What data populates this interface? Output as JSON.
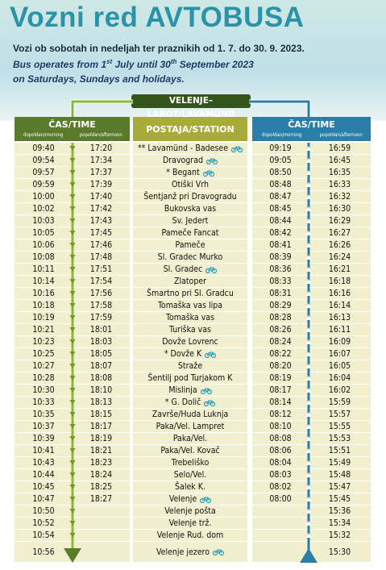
{
  "header": {
    "title": "Vozni red AVTOBUSA",
    "subtitle": "Vozi ob sobotah in nedeljah ter praznikih od 1. 7. do 30. 9. 2023.",
    "english": [
      "Bus operates from 1",
      "st",
      " July until 30",
      "th",
      " September 2023"
    ],
    "english_line2": "on Saturdays, Sundays and holidays."
  },
  "route": "VELENJE–LABOT/LAVAMÜND",
  "table": {
    "left_header": {
      "title": "ČAS/TIME",
      "morning": "dopoldan/morning",
      "afternoon": "popoldan/afternoon"
    },
    "station_header": "POSTAJA/STATION",
    "right_header": {
      "title": "ČAS/TIME",
      "morning": "dopoldan/morning",
      "afternoon": "popoldan/afternoon"
    },
    "rows": [
      {
        "dep_am": "09:40",
        "dep_pm": "17:20",
        "station": "** Lavamünd - Badesee",
        "bike": true,
        "ret_am": "09:19",
        "ret_pm": "16:59"
      },
      {
        "dep_am": "09:54",
        "dep_pm": "17:34",
        "station": "Dravograd",
        "bike": true,
        "ret_am": "09:05",
        "ret_pm": "16:45"
      },
      {
        "dep_am": "09:57",
        "dep_pm": "17:37",
        "station": "* Begant",
        "bike": true,
        "ret_am": "08:50",
        "ret_pm": "16:35"
      },
      {
        "dep_am": "09:59",
        "dep_pm": "17:39",
        "station": "Otiški Vrh",
        "bike": false,
        "ret_am": "08:48",
        "ret_pm": "16:33"
      },
      {
        "dep_am": "10:00",
        "dep_pm": "17:40",
        "station": "Šentjanž pri Dravogradu",
        "bike": false,
        "ret_am": "08:47",
        "ret_pm": "16:32"
      },
      {
        "dep_am": "10:02",
        "dep_pm": "17:42",
        "station": "Bukovska vas",
        "bike": false,
        "ret_am": "08:45",
        "ret_pm": "16:30"
      },
      {
        "dep_am": "10:03",
        "dep_pm": "17:43",
        "station": "Sv. Jedert",
        "bike": false,
        "ret_am": "08:44",
        "ret_pm": "16:29"
      },
      {
        "dep_am": "10:05",
        "dep_pm": "17:45",
        "station": "Pameče Fancat",
        "bike": false,
        "ret_am": "08:42",
        "ret_pm": "16:27"
      },
      {
        "dep_am": "10:06",
        "dep_pm": "17:46",
        "station": "Pameče",
        "bike": false,
        "ret_am": "08:41",
        "ret_pm": "16:26"
      },
      {
        "dep_am": "10:08",
        "dep_pm": "17:48",
        "station": "Sl. Gradec Murko",
        "bike": false,
        "ret_am": "08:39",
        "ret_pm": "16:24"
      },
      {
        "dep_am": "10:11",
        "dep_pm": "17:51",
        "station": "Sl. Gradec",
        "bike": true,
        "ret_am": "08:36",
        "ret_pm": "16:21"
      },
      {
        "dep_am": "10:14",
        "dep_pm": "17:54",
        "station": "Zlatoper",
        "bike": false,
        "ret_am": "08:33",
        "ret_pm": "16:18"
      },
      {
        "dep_am": "10:16",
        "dep_pm": "17:56",
        "station": "Šmartno pri Sl. Gradcu",
        "bike": false,
        "ret_am": "08:31",
        "ret_pm": "16:16"
      },
      {
        "dep_am": "10:18",
        "dep_pm": "17:58",
        "station": "Tomaška vas lipa",
        "bike": false,
        "ret_am": "08:29",
        "ret_pm": "16:14"
      },
      {
        "dep_am": "10:19",
        "dep_pm": "17:59",
        "station": "Tomaška vas",
        "bike": false,
        "ret_am": "08:28",
        "ret_pm": "16:13"
      },
      {
        "dep_am": "10:21",
        "dep_pm": "18:01",
        "station": "Turiška vas",
        "bike": false,
        "ret_am": "08:26",
        "ret_pm": "16:11"
      },
      {
        "dep_am": "10:23",
        "dep_pm": "18:03",
        "station": "Dovže Lovrenc",
        "bike": false,
        "ret_am": "08:24",
        "ret_pm": "16:09"
      },
      {
        "dep_am": "10:25",
        "dep_pm": "18:05",
        "station": "* Dovže K",
        "bike": true,
        "ret_am": "08:22",
        "ret_pm": "16:07"
      },
      {
        "dep_am": "10:27",
        "dep_pm": "18:07",
        "station": "Straže",
        "bike": false,
        "ret_am": "08:20",
        "ret_pm": "16:05"
      },
      {
        "dep_am": "10:28",
        "dep_pm": "18:08",
        "station": "Šentilj pod Turjakom K",
        "bike": false,
        "ret_am": "08:19",
        "ret_pm": "16:04"
      },
      {
        "dep_am": "10:30",
        "dep_pm": "18:10",
        "station": "Mislinja",
        "bike": true,
        "ret_am": "08:17",
        "ret_pm": "16:02"
      },
      {
        "dep_am": "10:33",
        "dep_pm": "18:13",
        "station": "* G. Dolič",
        "bike": true,
        "ret_am": "08:14",
        "ret_pm": "15:59"
      },
      {
        "dep_am": "10:35",
        "dep_pm": "18:15",
        "station": "Završe/Huda Luknja",
        "bike": false,
        "ret_am": "08:12",
        "ret_pm": "15:57"
      },
      {
        "dep_am": "10:37",
        "dep_pm": "18:17",
        "station": "Paka/Vel. Lampret",
        "bike": false,
        "ret_am": "08:10",
        "ret_pm": "15:55"
      },
      {
        "dep_am": "10:39",
        "dep_pm": "18:19",
        "station": "Paka/Vel.",
        "bike": false,
        "ret_am": "08:08",
        "ret_pm": "15:53"
      },
      {
        "dep_am": "10:41",
        "dep_pm": "18:21",
        "station": "Paka/Vel. Kovač",
        "bike": false,
        "ret_am": "08:06",
        "ret_pm": "15:51"
      },
      {
        "dep_am": "10:43",
        "dep_pm": "18:23",
        "station": "Trebeliško",
        "bike": false,
        "ret_am": "08:04",
        "ret_pm": "15:49"
      },
      {
        "dep_am": "10:44",
        "dep_pm": "18:24",
        "station": "Selo/Vel.",
        "bike": false,
        "ret_am": "08:03",
        "ret_pm": "15:48"
      },
      {
        "dep_am": "10:45",
        "dep_pm": "18:25",
        "station": "Šalek K.",
        "bike": false,
        "ret_am": "08:02",
        "ret_pm": "15:47"
      },
      {
        "dep_am": "10:47",
        "dep_pm": "18:27",
        "station": "Velenje",
        "bike": true,
        "ret_am": "08:00",
        "ret_pm": "15:45"
      },
      {
        "dep_am": "10:50",
        "dep_pm": null,
        "station": "Velenje pošta",
        "bike": false,
        "ret_am": null,
        "ret_pm": "15:36"
      },
      {
        "dep_am": "10:52",
        "dep_pm": null,
        "station": "Velenje trž.",
        "bike": false,
        "ret_am": null,
        "ret_pm": "15:34"
      },
      {
        "dep_am": "10:54",
        "dep_pm": null,
        "station": "Velenje Rud. dom",
        "bike": false,
        "ret_am": null,
        "ret_pm": "15:32"
      },
      {
        "dep_am": "10:56",
        "dep_pm": null,
        "station": "Velenje jezero",
        "bike": true,
        "ret_am": null,
        "ret_pm": "15:30"
      }
    ]
  }
}
